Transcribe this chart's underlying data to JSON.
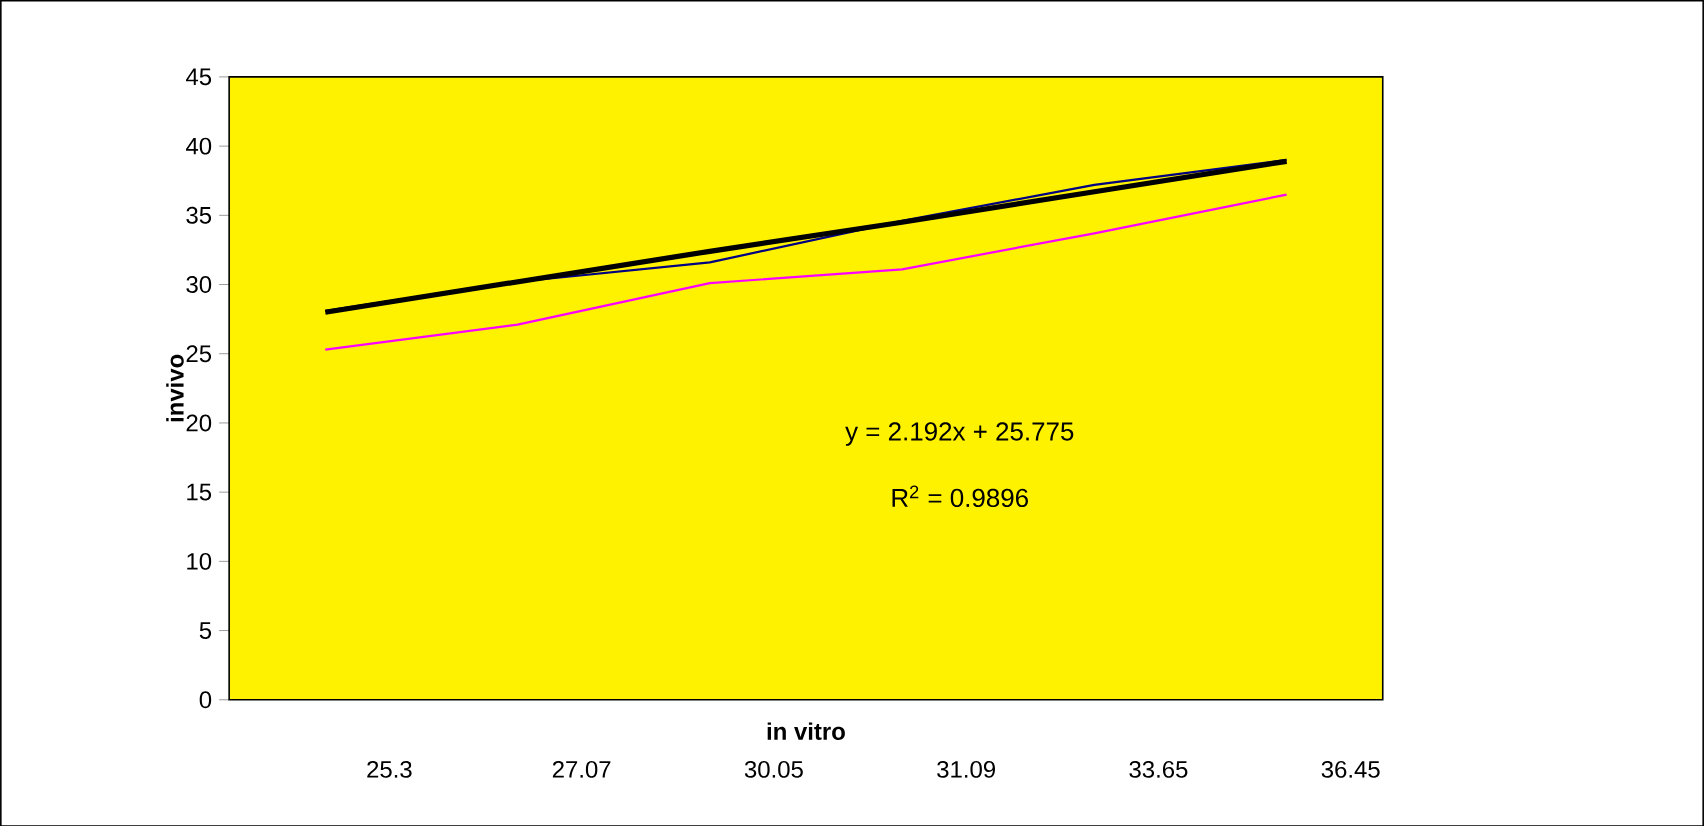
{
  "chart_data": {
    "type": "line",
    "xlabel": "in vitro",
    "ylabel": "invivo",
    "categories": [
      "25.3",
      "27.07",
      "30.05",
      "31.09",
      "33.65",
      "36.45"
    ],
    "series": [
      {
        "color": "#ff00ff",
        "values": [
          25.3,
          27.1,
          30.1,
          31.1,
          33.7,
          36.5
        ]
      },
      {
        "color": "#000080",
        "values": [
          28.1,
          30.2,
          31.6,
          34.6,
          37.2,
          39.0
        ]
      },
      {
        "type": "line",
        "color": "#000000",
        "values": [
          28.0,
          30.2,
          32.4,
          34.5,
          36.7,
          38.9
        ]
      }
    ],
    "ylim": [
      0,
      45
    ],
    "yticks": [
      0,
      5,
      10,
      15,
      20,
      25,
      30,
      35,
      40,
      45
    ],
    "annotations": [
      "y = 2.192x + 25.775",
      "R$^{2}$ = 0.9896"
    ],
    "grid": false,
    "marker": "none",
    "line_style": "solid"
  }
}
